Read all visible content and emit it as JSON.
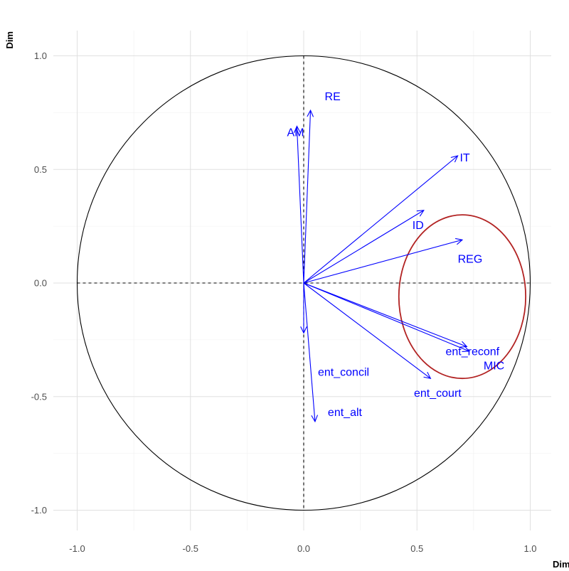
{
  "chart_data": {
    "type": "scatter",
    "subtype": "pca-correlation-circle",
    "title": "",
    "xlabel": "Dim",
    "ylabel": "Dim",
    "xlim": [
      -1.1,
      1.1
    ],
    "ylim": [
      -1.1,
      1.1
    ],
    "x_ticks": [
      "-1.0",
      "-0.5",
      "0.0",
      "0.5",
      "1.0"
    ],
    "y_ticks": [
      "1.0",
      "0.5",
      "0.0",
      "-0.5",
      "-1.0"
    ],
    "grid": true,
    "unit_circle": true,
    "colors": {
      "arrow": "#0000ff",
      "label": "#0000ff",
      "highlight_ellipse": "#b22222",
      "circle": "#000000"
    },
    "variables": [
      {
        "name": "RE",
        "x": 0.03,
        "y": 0.76
      },
      {
        "name": "AM",
        "x": -0.03,
        "y": 0.69
      },
      {
        "name": "IT",
        "x": 0.68,
        "y": 0.56
      },
      {
        "name": "ID",
        "x": 0.53,
        "y": 0.32
      },
      {
        "name": "REG",
        "x": 0.7,
        "y": 0.19
      },
      {
        "name": "ent_concil",
        "x": 0.0,
        "y": -0.22
      },
      {
        "name": "ent_reconf",
        "x": 0.72,
        "y": -0.28
      },
      {
        "name": "MIC",
        "x": 0.73,
        "y": -0.3
      },
      {
        "name": "ent_court",
        "x": 0.56,
        "y": -0.42
      },
      {
        "name": "ent_alt",
        "x": 0.05,
        "y": -0.61
      }
    ],
    "highlight_ellipse": {
      "cx": 0.7,
      "cy": -0.06,
      "rx": 0.28,
      "ry": 0.36
    }
  }
}
